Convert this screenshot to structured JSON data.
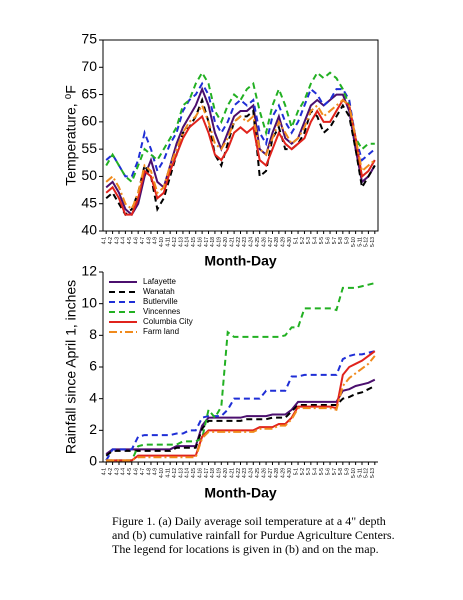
{
  "chart_data": [
    {
      "type": "line",
      "ylabel": "Temperature, ⁰F",
      "xlabel": "Month-Day",
      "categories": [
        "4-1",
        "4-2",
        "4-3",
        "4-4",
        "4-5",
        "4-6",
        "4-7",
        "4-8",
        "4-9",
        "4-10",
        "4-11",
        "4-12",
        "4-13",
        "4-14",
        "4-15",
        "4-16",
        "4-17",
        "4-18",
        "4-19",
        "4-20",
        "4-21",
        "4-22",
        "4-23",
        "4-24",
        "4-25",
        "4-26",
        "4-27",
        "4-28",
        "4-29",
        "4-30",
        "5-1",
        "5-2",
        "5-3",
        "5-4",
        "5-5",
        "5-6",
        "5-7",
        "5-8",
        "5-9",
        "5-10",
        "5-11",
        "5-12",
        "5-13"
      ],
      "ylim": [
        40,
        75
      ],
      "yticks": [
        40,
        45,
        50,
        55,
        60,
        65,
        70,
        75
      ],
      "series": [
        {
          "color": "#4b0f6e",
          "dash": "solid",
          "values": [
            48,
            49,
            47,
            44,
            43,
            45,
            50,
            53,
            49,
            48,
            52,
            56,
            59,
            61,
            63,
            66,
            63,
            58,
            55,
            58,
            61,
            62,
            62,
            63,
            55,
            54,
            58,
            61,
            57,
            56,
            57,
            60,
            63,
            64,
            63,
            64,
            65,
            65,
            62,
            55,
            49,
            50,
            52
          ]
        },
        {
          "color": "#000000",
          "dash": "dashed",
          "values": [
            46,
            47,
            45,
            43,
            44,
            47,
            52,
            50,
            44,
            46,
            50,
            54,
            58,
            59,
            61,
            64,
            60,
            54,
            52,
            56,
            60,
            61,
            61,
            62,
            50,
            51,
            57,
            59,
            55,
            55,
            56,
            58,
            62,
            61,
            58,
            59,
            61,
            63,
            61,
            55,
            48,
            50,
            52
          ]
        },
        {
          "color": "#1f2ed6",
          "dash": "dashed",
          "values": [
            53,
            54,
            52,
            50,
            50,
            53,
            58,
            55,
            51,
            53,
            56,
            58,
            62,
            64,
            65,
            67,
            65,
            60,
            58,
            60,
            63,
            64,
            63,
            64,
            58,
            56,
            61,
            63,
            60,
            58,
            60,
            63,
            66,
            65,
            63,
            64,
            66,
            66,
            64,
            57,
            53,
            54,
            55
          ]
        },
        {
          "color": "#22b022",
          "dash": "dashed",
          "values": [
            52,
            54,
            52,
            50,
            49,
            52,
            55,
            54,
            53,
            55,
            57,
            59,
            63,
            64,
            67,
            69,
            67,
            62,
            60,
            63,
            65,
            64,
            66,
            67,
            62,
            58,
            63,
            66,
            63,
            59,
            62,
            64,
            67,
            69,
            68,
            69,
            68,
            66,
            63,
            57,
            55,
            56,
            56
          ]
        },
        {
          "color": "#e0231c",
          "dash": "solid",
          "values": [
            47,
            48,
            46,
            43,
            43,
            46,
            51,
            50,
            46,
            47,
            51,
            54,
            57,
            59,
            60,
            61,
            58,
            54,
            53,
            55,
            58,
            59,
            58,
            59,
            53,
            52,
            55,
            58,
            56,
            55,
            56,
            57,
            60,
            62,
            60,
            60,
            62,
            64,
            63,
            57,
            50,
            51,
            53
          ]
        },
        {
          "color": "#f08a1c",
          "dash": "dashdot",
          "values": [
            49,
            50,
            48,
            45,
            44,
            47,
            52,
            51,
            47,
            48,
            52,
            55,
            58,
            60,
            61,
            63,
            60,
            56,
            55,
            57,
            60,
            61,
            60,
            61,
            55,
            54,
            57,
            60,
            58,
            56,
            57,
            59,
            62,
            63,
            61,
            62,
            63,
            64,
            63,
            57,
            51,
            52,
            53
          ]
        }
      ]
    },
    {
      "type": "line",
      "ylabel": "Rainfall since April 1, inches",
      "xlabel": "Month-Day",
      "legend": "upper left",
      "categories": [
        "4-1",
        "4-2",
        "4-3",
        "4-4",
        "4-5",
        "4-6",
        "4-7",
        "4-8",
        "4-9",
        "4-10",
        "4-11",
        "4-12",
        "4-13",
        "4-14",
        "4-15",
        "4-16",
        "4-17",
        "4-18",
        "4-19",
        "4-20",
        "4-21",
        "4-22",
        "4-23",
        "4-24",
        "4-25",
        "4-26",
        "4-27",
        "4-28",
        "4-29",
        "4-30",
        "5-1",
        "5-2",
        "5-3",
        "5-4",
        "5-5",
        "5-6",
        "5-7",
        "5-8",
        "5-9",
        "5-10",
        "5-11",
        "5-12",
        "5-13"
      ],
      "ylim": [
        0,
        12
      ],
      "yticks": [
        0,
        2,
        4,
        6,
        8,
        10,
        12
      ],
      "series": [
        {
          "name": "Lafayette",
          "color": "#4b0f6e",
          "dash": "solid",
          "values": [
            0.5,
            0.8,
            0.8,
            0.8,
            0.8,
            0.8,
            0.8,
            0.8,
            0.8,
            0.8,
            0.8,
            1.0,
            1.0,
            1.0,
            1.0,
            2.3,
            2.8,
            2.8,
            2.8,
            2.8,
            2.8,
            2.8,
            2.9,
            2.9,
            2.9,
            2.9,
            3.0,
            3.0,
            3.0,
            3.3,
            3.8,
            3.8,
            3.8,
            3.8,
            3.8,
            3.8,
            3.8,
            4.5,
            4.6,
            4.8,
            4.9,
            5.0,
            5.2
          ]
        },
        {
          "name": "Wanatah",
          "color": "#000000",
          "dash": "dashed",
          "values": [
            0.4,
            0.7,
            0.7,
            0.7,
            0.7,
            0.7,
            0.7,
            0.7,
            0.7,
            0.7,
            0.7,
            0.9,
            0.9,
            0.9,
            0.9,
            2.1,
            2.6,
            2.6,
            2.6,
            2.6,
            2.6,
            2.6,
            2.7,
            2.7,
            2.7,
            2.7,
            2.8,
            2.8,
            2.8,
            3.2,
            3.6,
            3.6,
            3.6,
            3.6,
            3.6,
            3.6,
            3.6,
            4.0,
            4.1,
            4.3,
            4.4,
            4.6,
            4.8
          ]
        },
        {
          "name": "Butlerville",
          "color": "#1f2ed6",
          "dash": "dashed",
          "values": [
            0.1,
            0.8,
            0.8,
            0.8,
            0.8,
            1.6,
            1.7,
            1.7,
            1.7,
            1.7,
            1.7,
            1.8,
            1.8,
            2.0,
            2.0,
            2.8,
            2.9,
            2.9,
            2.9,
            3.3,
            4.0,
            4.0,
            4.0,
            4.0,
            4.0,
            4.5,
            4.5,
            4.5,
            4.5,
            5.4,
            5.4,
            5.5,
            5.5,
            5.5,
            5.5,
            5.5,
            5.5,
            6.5,
            6.7,
            6.8,
            6.8,
            6.9,
            7.0
          ]
        },
        {
          "name": "Vincennes",
          "color": "#22b022",
          "dash": "dashed",
          "values": [
            0.1,
            0.1,
            0.1,
            0.1,
            0.1,
            1.0,
            1.1,
            1.1,
            1.1,
            1.1,
            1.1,
            1.1,
            1.3,
            1.3,
            1.3,
            1.5,
            3.3,
            2.8,
            3.5,
            8.2,
            7.9,
            7.9,
            7.9,
            7.9,
            7.9,
            7.9,
            7.9,
            7.9,
            8.0,
            8.5,
            8.5,
            9.7,
            9.7,
            9.7,
            9.7,
            9.7,
            9.6,
            11.0,
            11.0,
            11.0,
            11.1,
            11.2,
            11.3
          ]
        },
        {
          "name": "Columbia City",
          "color": "#e0231c",
          "dash": "solid",
          "values": [
            0.1,
            0.1,
            0.1,
            0.1,
            0.1,
            0.4,
            0.4,
            0.4,
            0.4,
            0.4,
            0.4,
            0.4,
            0.4,
            0.4,
            0.4,
            1.6,
            2.0,
            2.0,
            2.0,
            2.0,
            2.0,
            2.0,
            2.0,
            2.0,
            2.2,
            2.2,
            2.2,
            2.4,
            2.4,
            2.8,
            3.5,
            3.5,
            3.5,
            3.5,
            3.5,
            3.5,
            3.4,
            5.5,
            6.0,
            6.2,
            6.4,
            6.7,
            7.0
          ]
        },
        {
          "name": "Farm land",
          "color": "#f08a1c",
          "dash": "dashdot",
          "values": [
            0.1,
            0.1,
            0.1,
            0.1,
            0.1,
            0.3,
            0.3,
            0.3,
            0.3,
            0.3,
            0.3,
            0.3,
            0.3,
            0.3,
            0.3,
            1.5,
            1.9,
            1.9,
            1.9,
            1.9,
            1.9,
            1.9,
            1.9,
            1.9,
            2.1,
            2.1,
            2.1,
            2.3,
            2.3,
            2.7,
            3.4,
            3.4,
            3.4,
            3.4,
            3.4,
            3.4,
            3.3,
            4.8,
            5.3,
            5.6,
            5.9,
            6.2,
            6.7
          ]
        }
      ]
    }
  ],
  "caption": "Figure 1. (a) Daily average soil temperature at a 4\" depth and (b) cumulative rainfall for Purdue Agriculture Centers. The legend for locations is given in (b) and on the map."
}
